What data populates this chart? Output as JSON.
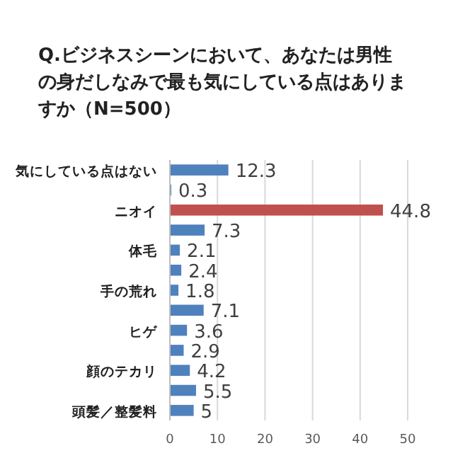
{
  "chart_data": {
    "type": "bar",
    "orientation": "horizontal",
    "title": "Q.ビジネスシーンにおいて、あなたは男性の身だしなみで最も気にしている点はありますか（N=500）",
    "categories": [
      "気にしている点はない",
      null,
      "ニオイ",
      null,
      "体毛",
      null,
      "手の荒れ",
      null,
      "ヒゲ",
      null,
      "顔のテカリ",
      null,
      "頭髪／整髪料"
    ],
    "values": [
      12.3,
      0.3,
      44.8,
      7.3,
      2.1,
      2.4,
      1.8,
      7.1,
      3.6,
      2.9,
      4.2,
      5.5,
      5
    ],
    "colors": [
      "#4f81bd",
      "#4f81bd",
      "#c0504d",
      "#4f81bd",
      "#4f81bd",
      "#4f81bd",
      "#4f81bd",
      "#4f81bd",
      "#4f81bd",
      "#4f81bd",
      "#4f81bd",
      "#4f81bd",
      "#4f81bd"
    ],
    "xlim": [
      0,
      50
    ],
    "xticks": [
      0,
      10,
      20,
      30,
      40,
      50
    ],
    "grid": "x",
    "data_labels": true
  }
}
